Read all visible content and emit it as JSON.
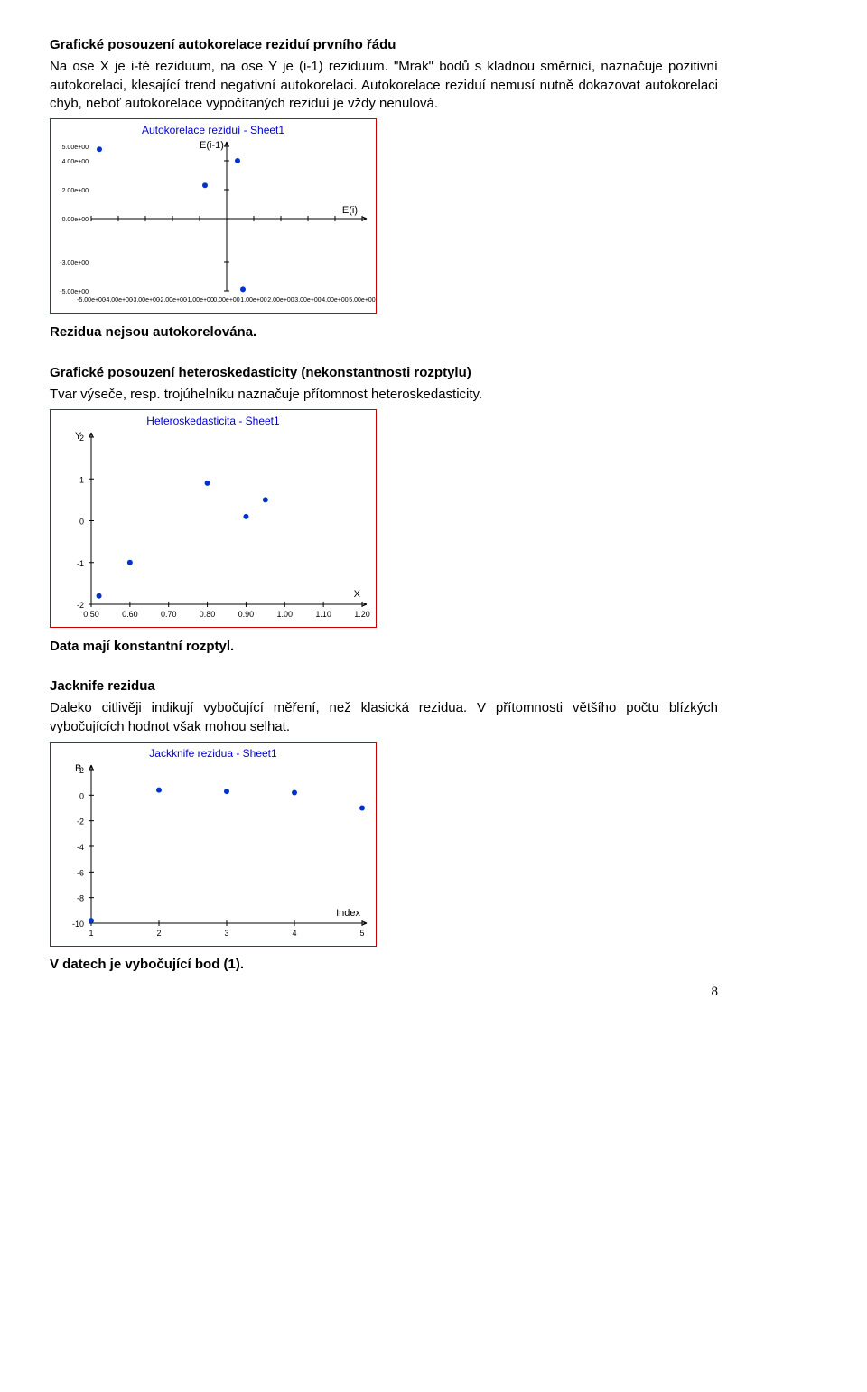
{
  "section1": {
    "heading": "Grafické posouzení autokorelace reziduí prvního řádu",
    "line1": "Na ose X je i-té reziduum, na ose Y je (i-1) reziduum. \"Mrak\" bodů s kladnou směrnicí, naznačuje pozitivní autokorelaci, klesající trend negativní autokorelaci. Autokorelace reziduí nemusí nutně dokazovat autokorelaci chyb, neboť autokorelace vypočítaných reziduí je vždy nenulová.",
    "conclusion": "Rezidua nejsou autokorelována."
  },
  "chart1": {
    "type": "scatter",
    "title": "Autokorelace reziduí - Sheet1",
    "xlabel": "E(i)",
    "ylabel": "E(i-1)",
    "xmin": -5,
    "xmax": 5,
    "ymin": -5,
    "ymax": 5,
    "xticks": [
      "-5.00e+00",
      "-4.00e+00",
      "-3.00e+00",
      "-2.00e+00",
      "-1.00e+00",
      "0.00e+00",
      "1.00e+00",
      "2.00e+00",
      "3.00e+00",
      "4.00e+00",
      "5.00e+00"
    ],
    "yticks_vals": [
      -5,
      -3,
      0,
      2,
      4,
      5
    ],
    "yticks_labels": [
      "-5.00e+00",
      "-3.00e+00",
      "0.00e+00",
      "2.00e+00",
      "4.00e+00",
      "5.00e+00"
    ],
    "points": [
      {
        "x": -4.7,
        "y": 4.8
      },
      {
        "x": -0.8,
        "y": 2.3
      },
      {
        "x": 0.4,
        "y": 4.0
      },
      {
        "x": 0.6,
        "y": -4.9
      }
    ],
    "point_color": "#0033cc",
    "point_radius": 3,
    "background_color": "#ffffff",
    "border_color": "#cc0000"
  },
  "section2": {
    "heading": "Grafické posouzení heteroskedasticity (nekonstantnosti rozptylu)",
    "line1": "Tvar výseče, resp. trojúhelníku naznačuje přítomnost heteroskedasticity.",
    "conclusion": "Data mají konstantní rozptyl."
  },
  "chart2": {
    "type": "scatter",
    "title": "Heteroskedasticita - Sheet1",
    "xlabel": "X",
    "ylabel": "Y",
    "xmin": 0.5,
    "xmax": 1.2,
    "ymin": -2,
    "ymax": 2,
    "xticks": [
      "0.50",
      "0.60",
      "0.70",
      "0.80",
      "0.90",
      "1.00",
      "1.10",
      "1.20"
    ],
    "yticks": [
      "-2",
      "-1",
      "0",
      "1",
      "2"
    ],
    "points": [
      {
        "x": 0.52,
        "y": -1.8
      },
      {
        "x": 0.6,
        "y": -1.0
      },
      {
        "x": 0.8,
        "y": 0.9
      },
      {
        "x": 0.9,
        "y": 0.1
      },
      {
        "x": 0.95,
        "y": 0.5
      }
    ],
    "point_color": "#0033cc",
    "point_radius": 3
  },
  "section3": {
    "heading": "Jacknife rezidua",
    "line1": "Daleko citlivěji indikují vybočující měření, než klasická rezidua. V přítomnosti většího počtu blízkých vybočujících hodnot však mohou selhat.",
    "conclusion": "V datech je vybočující bod (1)."
  },
  "chart3": {
    "type": "scatter",
    "title": "Jackknife rezidua - Sheet1",
    "xlabel": "Index",
    "ylabel": "B",
    "xmin": 1,
    "xmax": 5,
    "ymin": -10,
    "ymax": 2,
    "xticks": [
      "1",
      "2",
      "3",
      "4",
      "5"
    ],
    "yticks": [
      "-10",
      "-8",
      "-6",
      "-4",
      "-2",
      "0",
      "2"
    ],
    "points": [
      {
        "x": 1,
        "y": -9.8
      },
      {
        "x": 2,
        "y": 0.4
      },
      {
        "x": 3,
        "y": 0.3
      },
      {
        "x": 4,
        "y": 0.2
      },
      {
        "x": 5,
        "y": -1.0
      }
    ],
    "point_color": "#0033cc",
    "point_radius": 3
  },
  "page_number": "8"
}
